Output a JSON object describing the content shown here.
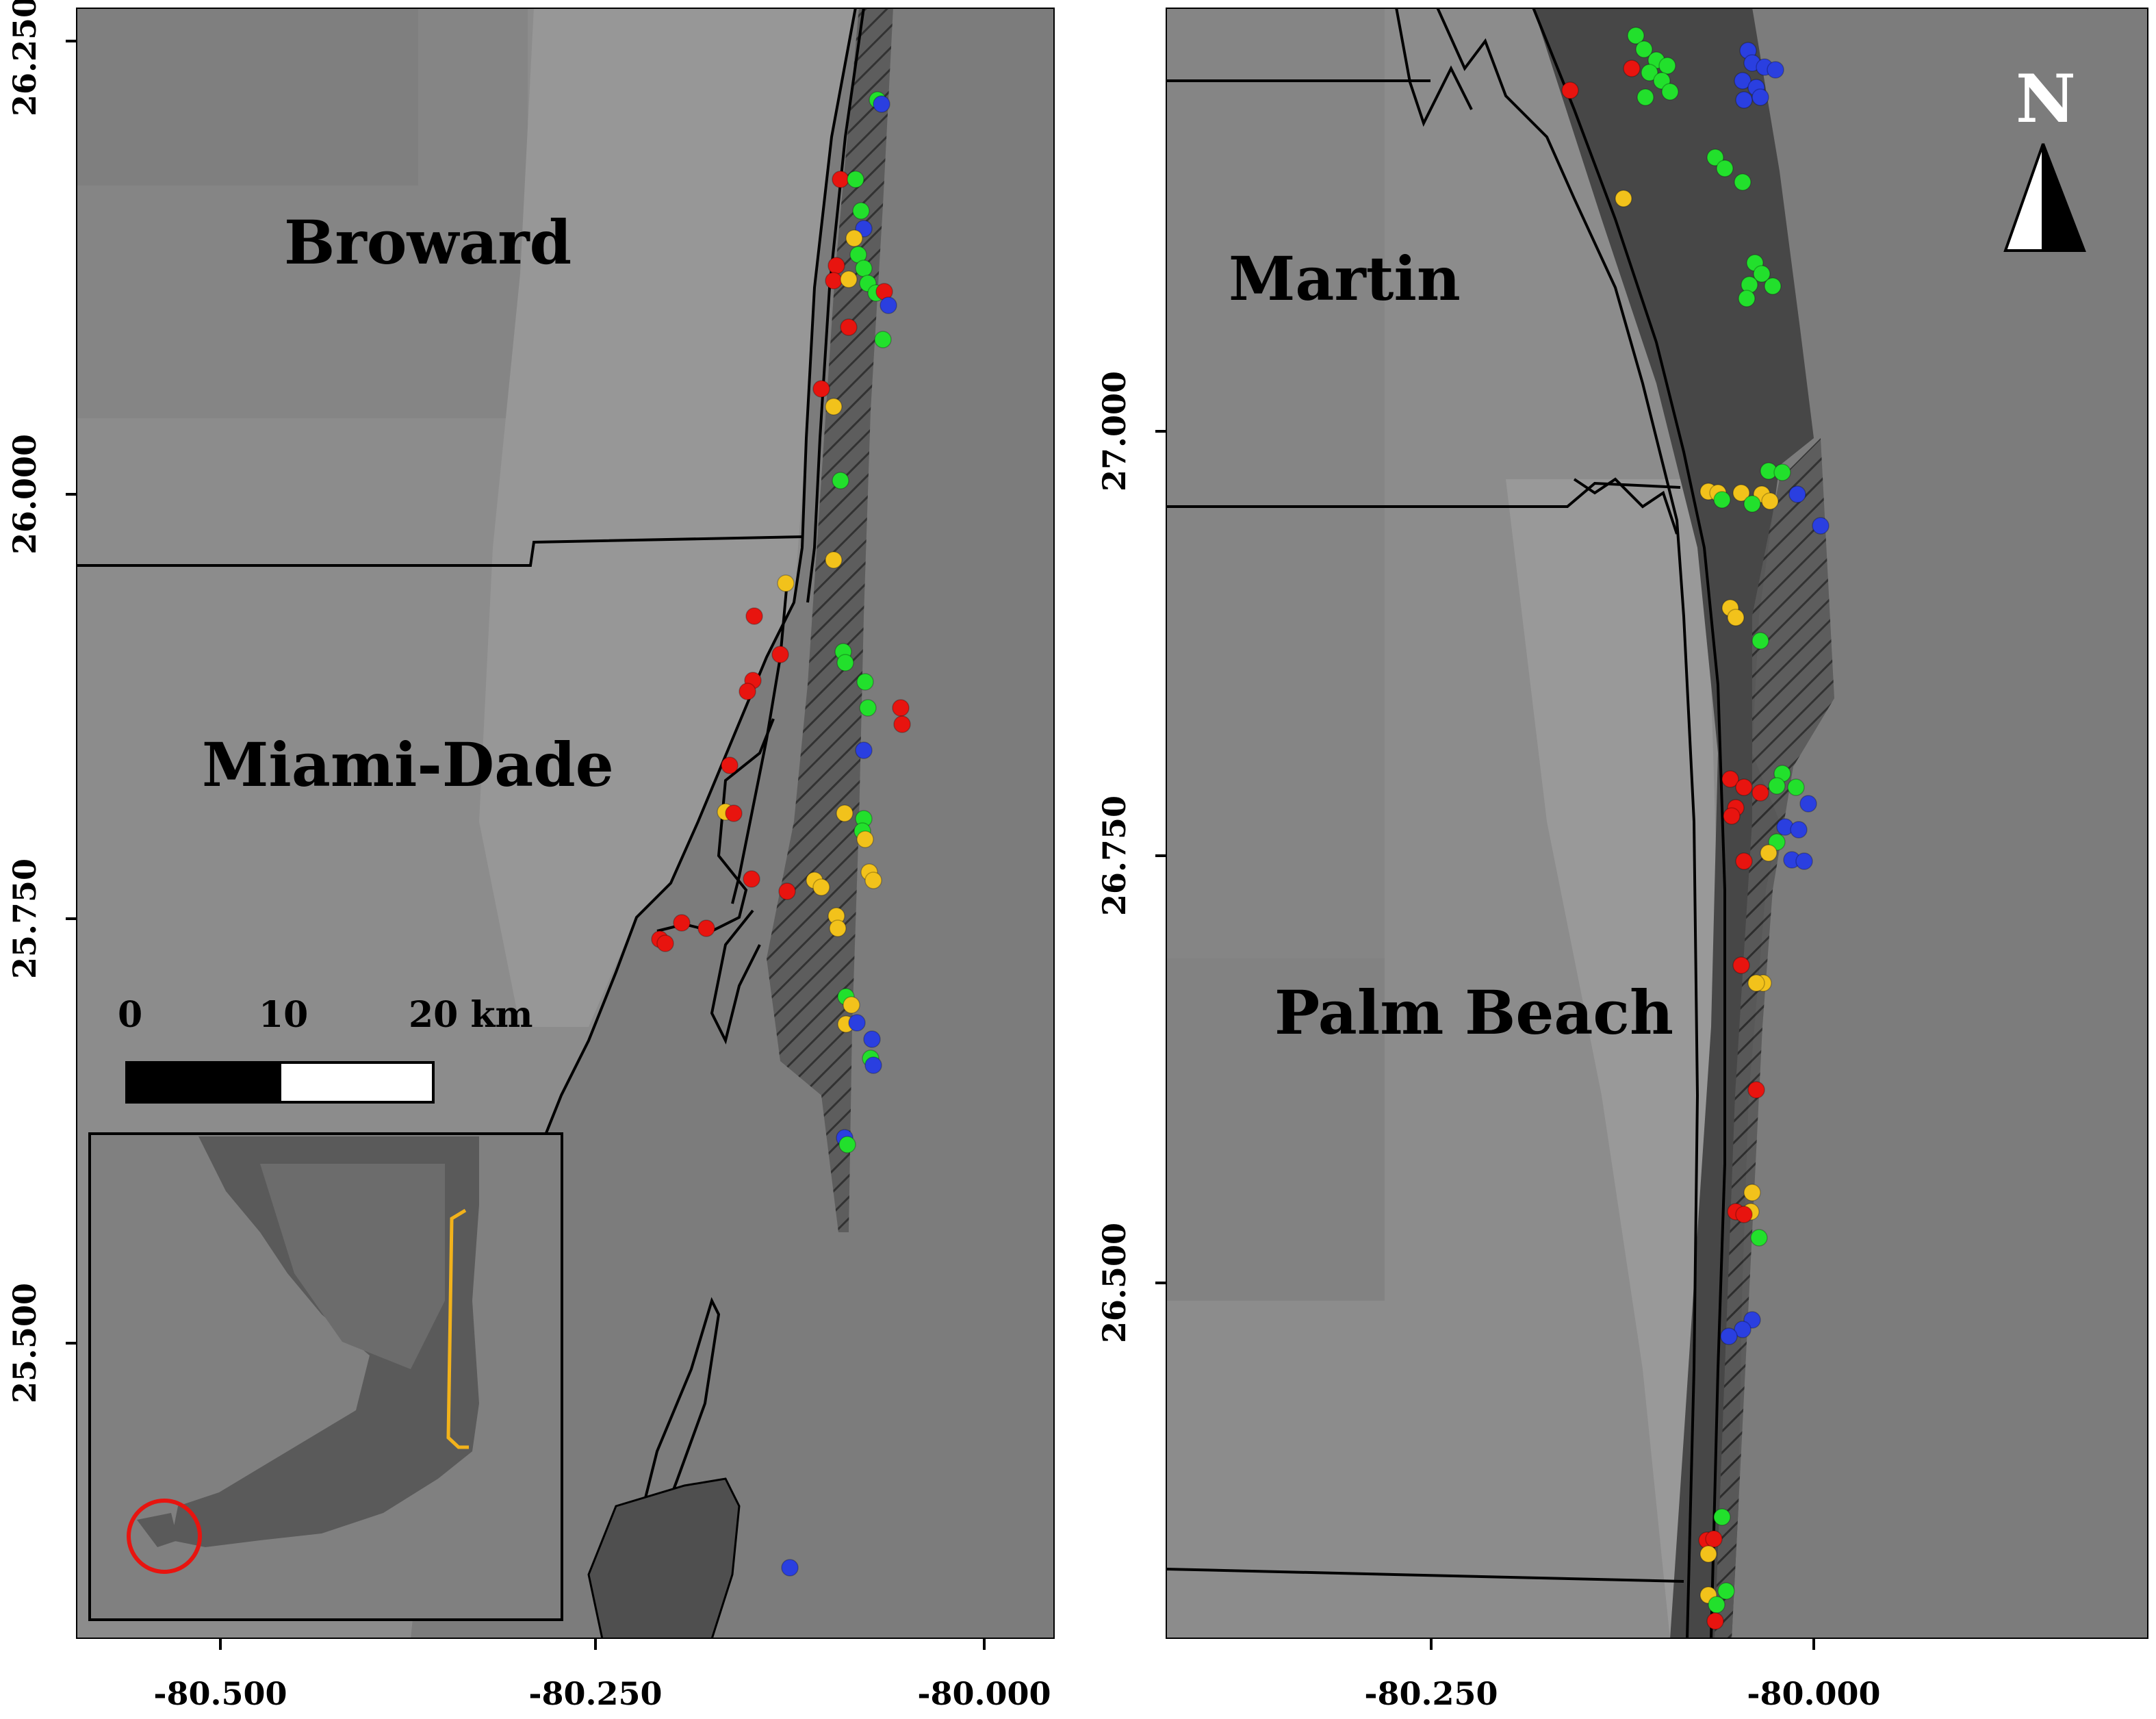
{
  "colors": {
    "land": "#8a8a8a",
    "sea": "#7b7b7b",
    "lagoon": "#4a4a4a",
    "border": "#000000",
    "red": "#e8140f",
    "green": "#22e02c",
    "yellow": "#f2c21b",
    "blue": "#2a3fe0",
    "inset_circle": "#e8140f",
    "inset_bracket": "#f2b21b"
  },
  "panels": [
    {
      "id": "south",
      "counties": [
        "Broward",
        "Miami-Dade"
      ],
      "lat_ticks": [
        "26.250",
        "26.000",
        "25.750",
        "25.500"
      ],
      "lon_ticks": [
        "-80.500",
        "-80.250",
        "-80.000"
      ],
      "scale_bar": {
        "labels": [
          "0",
          "10",
          "20 km"
        ]
      },
      "inset": {
        "markers": [
          "red-circle",
          "yellow-bracket"
        ]
      }
    },
    {
      "id": "north",
      "counties": [
        "Martin",
        "Palm Beach"
      ],
      "lat_ticks": [
        "27.000",
        "26.750",
        "26.500"
      ],
      "lon_ticks": [
        "-80.250",
        "-80.000"
      ],
      "north_arrow": {
        "label": "N"
      }
    }
  ]
}
